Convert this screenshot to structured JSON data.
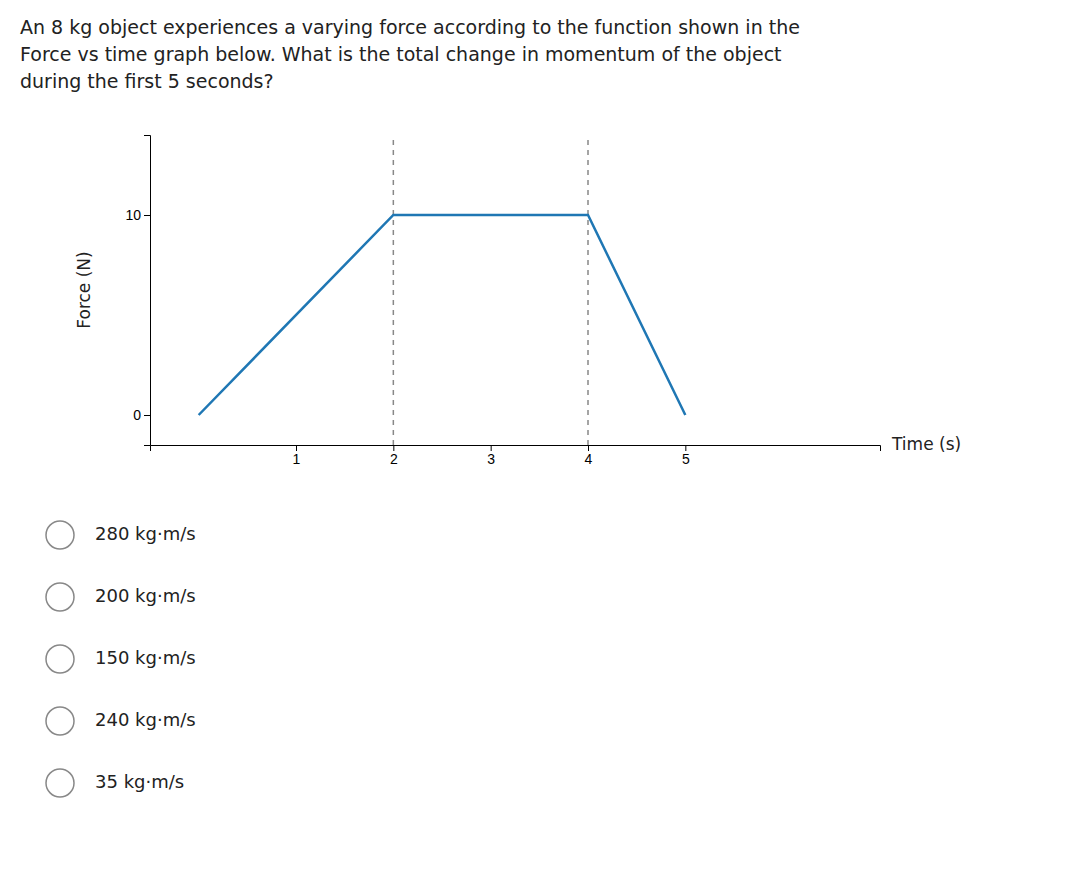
{
  "chart_data": {
    "type": "line",
    "title": "An 8 kg object experiences a varying force according to the function shown in the\nForce vs time graph below.  What is the total change in momentum of the object\nduring the first 5 seconds?",
    "x": [
      0,
      2,
      4,
      5
    ],
    "values": [
      0,
      10,
      10,
      0
    ],
    "reference_lines": [
      2,
      4
    ],
    "xlabel": "Time (s)",
    "ylabel": "Force (N)",
    "xlim": [
      -0.5,
      7.0
    ],
    "ylim": [
      -1.5,
      14
    ],
    "xticks": [
      1,
      2,
      3,
      4,
      5
    ],
    "yticks": [
      0,
      10
    ],
    "line_style": "solid",
    "annotations": [
      "280 kg·m/s",
      "200 kg·m/s",
      "150 kg·m/s",
      "240 kg·m/s",
      "35 kg·m/s"
    ]
  }
}
